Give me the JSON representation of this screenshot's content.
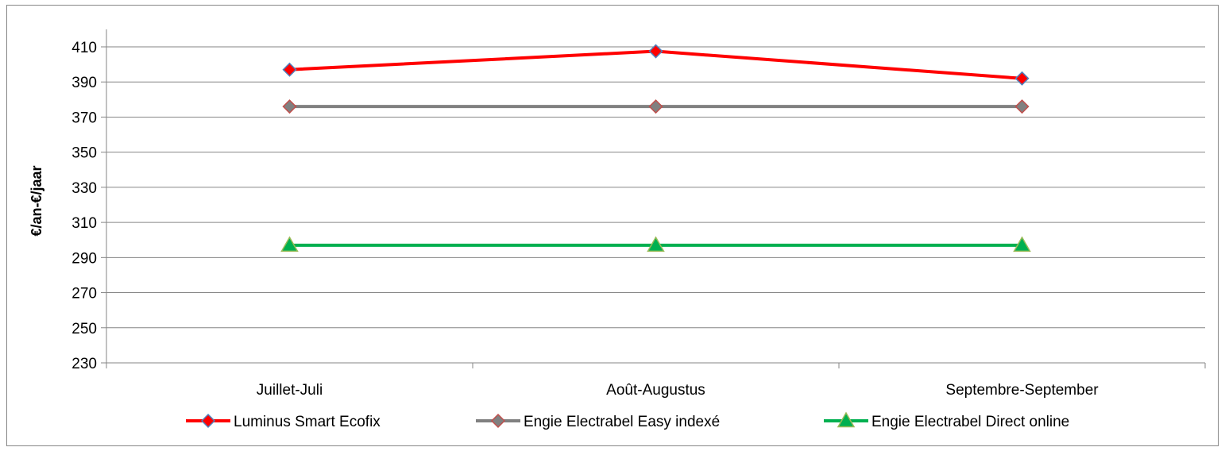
{
  "chart_data": {
    "type": "line",
    "title": "",
    "xlabel": "",
    "ylabel": "€/an-€/jaar",
    "categories": [
      "Juillet-Juli",
      "Août-Augustus",
      "Septembre-September"
    ],
    "ylim": [
      230,
      420
    ],
    "yticks": [
      230,
      250,
      270,
      290,
      310,
      330,
      350,
      370,
      390,
      410
    ],
    "grid": true,
    "legend_position": "bottom",
    "series": [
      {
        "name": "Luminus Smart Ecofix",
        "values": [
          397,
          407.5,
          392
        ],
        "color": "#ff0000",
        "marker": "diamond",
        "marker_fill": "#ff0000",
        "marker_stroke": "#4f81bd"
      },
      {
        "name": "Engie Electrabel Easy indexé",
        "values": [
          376,
          376,
          376
        ],
        "color": "#808080",
        "marker": "diamond",
        "marker_fill": "#808080",
        "marker_stroke": "#c0504d"
      },
      {
        "name": "Engie Electrabel Direct online",
        "values": [
          297,
          297,
          297
        ],
        "color": "#00b050",
        "marker": "triangle",
        "marker_fill": "#00b050",
        "marker_stroke": "#9bbb59"
      }
    ]
  }
}
